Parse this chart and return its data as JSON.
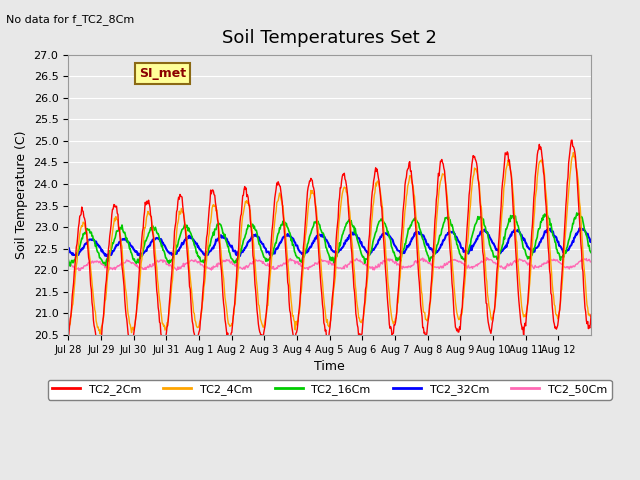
{
  "title": "Soil Temperatures Set 2",
  "subtitle": "No data for f_TC2_8Cm",
  "xlabel": "Time",
  "ylabel": "Soil Temperature (C)",
  "ylim": [
    20.5,
    27.0
  ],
  "legend_label": "SI_met",
  "series_colors": {
    "TC2_2Cm": "#FF0000",
    "TC2_4Cm": "#FFA500",
    "TC2_16Cm": "#00CC00",
    "TC2_32Cm": "#0000FF",
    "TC2_50Cm": "#FF69B4"
  },
  "xtick_labels": [
    "Jul 28",
    "Jul 29",
    "Jul 30",
    "Jul 31",
    "Aug 1",
    "Aug 2",
    "Aug 3",
    "Aug 4",
    "Aug 5",
    "Aug 6",
    "Aug 7",
    "Aug 8",
    "Aug 9",
    "Aug 10",
    "Aug 11",
    "Aug 12"
  ],
  "background_color": "#E8E8E8",
  "grid_color": "#FFFFFF",
  "title_fontsize": 13,
  "axis_fontsize": 9,
  "tick_fontsize": 8
}
